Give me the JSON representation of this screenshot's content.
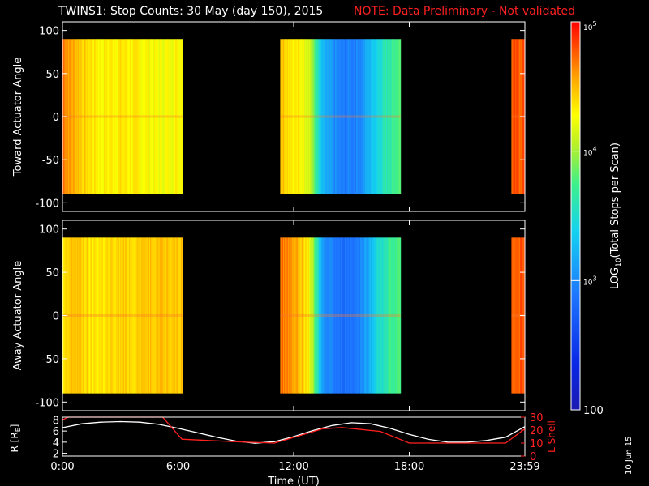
{
  "title": "TWINS1: Stop Counts: 30 May (day 150), 2015",
  "note": "NOTE: Data Preliminary - Not validated",
  "date_stamp": "10 Jun 15",
  "colors": {
    "note": "#ff2020",
    "lshell": "#ff2020",
    "r": "#ffffff"
  },
  "chart_data": [
    {
      "type": "heatmap",
      "ylabel": "Toward Actuator Angle",
      "ylim": [
        -110,
        110
      ],
      "yticks": [
        "100",
        "50",
        "0",
        "-50",
        "-100"
      ],
      "ytick_values": [
        100,
        50,
        0,
        -50,
        -100
      ],
      "xlim": [
        0,
        24
      ],
      "data_y_range": [
        -90,
        90
      ],
      "data_intervals_hours": [
        [
          0,
          6.25
        ],
        [
          11.3,
          17.55
        ],
        [
          23.3,
          24
        ]
      ],
      "mean_log_counts_by_hour": [
        [
          0.0,
          4.75
        ],
        [
          0.3,
          4.6
        ],
        [
          1.0,
          4.45
        ],
        [
          2.0,
          4.3
        ],
        [
          3.0,
          4.35
        ],
        [
          4.0,
          4.3
        ],
        [
          5.0,
          4.25
        ],
        [
          6.0,
          4.3
        ],
        [
          11.3,
          4.5
        ],
        [
          12.0,
          4.35
        ],
        [
          12.8,
          4.2
        ],
        [
          13.5,
          3.2
        ],
        [
          14.5,
          2.9
        ],
        [
          15.5,
          3.0
        ],
        [
          16.2,
          3.4
        ],
        [
          17.0,
          3.7
        ],
        [
          17.5,
          3.8
        ],
        [
          23.3,
          4.75
        ],
        [
          24.0,
          4.8
        ]
      ]
    },
    {
      "type": "heatmap",
      "ylabel": "Away Actuator Angle",
      "ylim": [
        -110,
        110
      ],
      "yticks": [
        "100",
        "50",
        "0",
        "-50",
        "-100"
      ],
      "ytick_values": [
        100,
        50,
        0,
        -50,
        -100
      ],
      "xlim": [
        0,
        24
      ],
      "data_y_range": [
        -90,
        90
      ],
      "data_intervals_hours": [
        [
          0,
          6.25
        ],
        [
          11.3,
          17.55
        ],
        [
          23.3,
          24
        ]
      ],
      "mean_log_counts_by_hour": [
        [
          0.0,
          4.3
        ],
        [
          0.6,
          4.5
        ],
        [
          1.5,
          4.35
        ],
        [
          3.0,
          4.4
        ],
        [
          4.0,
          4.45
        ],
        [
          5.0,
          4.5
        ],
        [
          6.0,
          4.45
        ],
        [
          11.3,
          4.7
        ],
        [
          12.0,
          4.6
        ],
        [
          12.8,
          4.3
        ],
        [
          13.5,
          3.1
        ],
        [
          14.5,
          2.85
        ],
        [
          15.5,
          2.95
        ],
        [
          16.2,
          3.4
        ],
        [
          17.0,
          3.7
        ],
        [
          17.5,
          3.8
        ],
        [
          23.3,
          4.75
        ],
        [
          24.0,
          4.8
        ]
      ]
    },
    {
      "type": "line",
      "xlabel": "Time (UT)",
      "xticks": [
        "0:00",
        "6:00",
        "12:00",
        "18:00",
        "23:59"
      ],
      "xtick_values": [
        0,
        6,
        12,
        18,
        24
      ],
      "ylabel_left": "R [R",
      "ylabel_left_sub": "E",
      "ylabel_left_close": "]",
      "ylim_left": [
        1.5,
        8.5
      ],
      "yticks_left": [
        "8",
        "6",
        "4",
        "2"
      ],
      "ytick_values_left": [
        8,
        6,
        4,
        2
      ],
      "ylabel_right": "L Shell",
      "ylim_right": [
        0,
        30
      ],
      "yticks_right": [
        "30",
        "20",
        "10",
        "0"
      ],
      "ytick_values_right": [
        30,
        20,
        10,
        0
      ],
      "series": [
        {
          "name": "R",
          "axis": "left",
          "x": [
            0,
            1,
            2,
            3,
            4,
            5,
            6,
            7,
            8,
            9,
            10,
            11,
            12,
            13,
            14,
            15,
            16,
            17,
            18,
            19,
            20,
            21,
            22,
            23,
            24
          ],
          "y": [
            6.6,
            7.3,
            7.6,
            7.7,
            7.6,
            7.2,
            6.5,
            5.7,
            4.9,
            4.2,
            3.8,
            4.1,
            5.0,
            6.1,
            7.0,
            7.5,
            7.3,
            6.5,
            5.4,
            4.5,
            4.0,
            4.0,
            4.3,
            4.9,
            6.8
          ]
        },
        {
          "name": "L Shell",
          "axis": "right",
          "x": [
            0,
            0.3,
            5.2,
            6.2,
            9.0,
            11.0,
            13.5,
            14.5,
            16.5,
            18.0,
            23.0,
            24.0
          ],
          "y": [
            28,
            30,
            30,
            13,
            11,
            10,
            21,
            22,
            19,
            10,
            10,
            21
          ]
        }
      ]
    },
    {
      "type": "heatmap",
      "colorbar": true,
      "label_prefix": "LOG",
      "label_sub": "10",
      "label_suffix": "(Total Stops per Scan)",
      "range": [
        100,
        100000
      ],
      "ticks": [
        {
          "value": 100000,
          "base": "10",
          "exp": "5"
        },
        {
          "value": 10000,
          "base": "10",
          "exp": "4"
        },
        {
          "value": 1000,
          "base": "10",
          "exp": "3"
        },
        {
          "value": 100,
          "label": "100"
        }
      ]
    }
  ]
}
